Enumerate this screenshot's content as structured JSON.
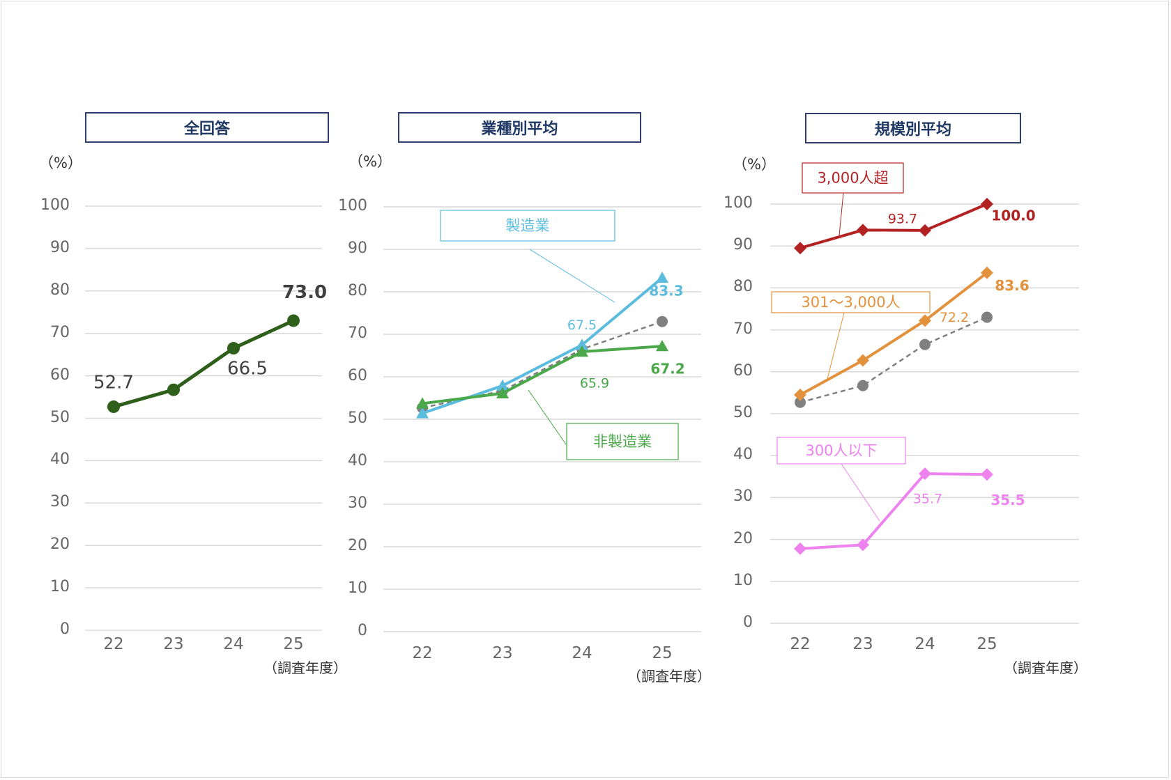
{
  "unit_label": "（%）",
  "x_axis_note": "（調査年度）",
  "chart_data": [
    {
      "type": "line",
      "title": "全回答",
      "categories": [
        "22",
        "23",
        "24",
        "25"
      ],
      "ylim": [
        0,
        100
      ],
      "yticks": [
        "0",
        "10",
        "20",
        "30",
        "40",
        "50",
        "60",
        "70",
        "80",
        "90",
        "100"
      ],
      "series": [
        {
          "name": "全回答",
          "values": [
            52.7,
            56.7,
            66.5,
            73.0
          ],
          "color": "#2e5f1b",
          "labels": [
            "52.7",
            "",
            "66.5",
            "73.0"
          ]
        }
      ]
    },
    {
      "type": "line",
      "title": "業種別平均",
      "categories": [
        "22",
        "23",
        "24",
        "25"
      ],
      "ylim": [
        0,
        100
      ],
      "yticks": [
        "0",
        "10",
        "20",
        "30",
        "40",
        "50",
        "60",
        "70",
        "80",
        "90",
        "100"
      ],
      "series": [
        {
          "name": "製造業",
          "values": [
            51.4,
            57.9,
            67.5,
            83.3
          ],
          "color": "#5bbcde",
          "labels": [
            "",
            "",
            "67.5",
            "83.3"
          ]
        },
        {
          "name": "非製造業",
          "values": [
            53.7,
            56.1,
            65.9,
            67.2
          ],
          "color": "#4aa84a",
          "labels": [
            "",
            "",
            "65.9",
            "67.2"
          ]
        },
        {
          "name": "全回答",
          "values": [
            52.7,
            56.7,
            66.5,
            73.0
          ],
          "color": "#808080",
          "dashed": true,
          "labels": [
            "",
            "",
            "",
            ""
          ]
        }
      ]
    },
    {
      "type": "line",
      "title": "規模別平均",
      "categories": [
        "22",
        "23",
        "24",
        "25"
      ],
      "ylim": [
        0,
        100
      ],
      "yticks": [
        "0",
        "10",
        "20",
        "30",
        "40",
        "50",
        "60",
        "70",
        "80",
        "90",
        "100"
      ],
      "series": [
        {
          "name": "3,000人超",
          "values": [
            89.5,
            93.8,
            93.7,
            100.0
          ],
          "color": "#b22222",
          "labels": [
            "",
            "",
            "93.7",
            "100.0"
          ]
        },
        {
          "name": "301～3,000人",
          "values": [
            54.5,
            62.7,
            72.2,
            83.6
          ],
          "color": "#e2913c",
          "labels": [
            "",
            "",
            "72.2",
            "83.6"
          ]
        },
        {
          "name": "300人以下",
          "values": [
            17.8,
            18.7,
            35.7,
            35.5
          ],
          "color": "#ee82ee",
          "labels": [
            "",
            "",
            "35.7",
            "35.5"
          ]
        },
        {
          "name": "全回答",
          "values": [
            52.7,
            56.7,
            66.5,
            73.0
          ],
          "color": "#808080",
          "dashed": true,
          "labels": [
            "",
            "",
            "",
            ""
          ]
        }
      ]
    }
  ]
}
